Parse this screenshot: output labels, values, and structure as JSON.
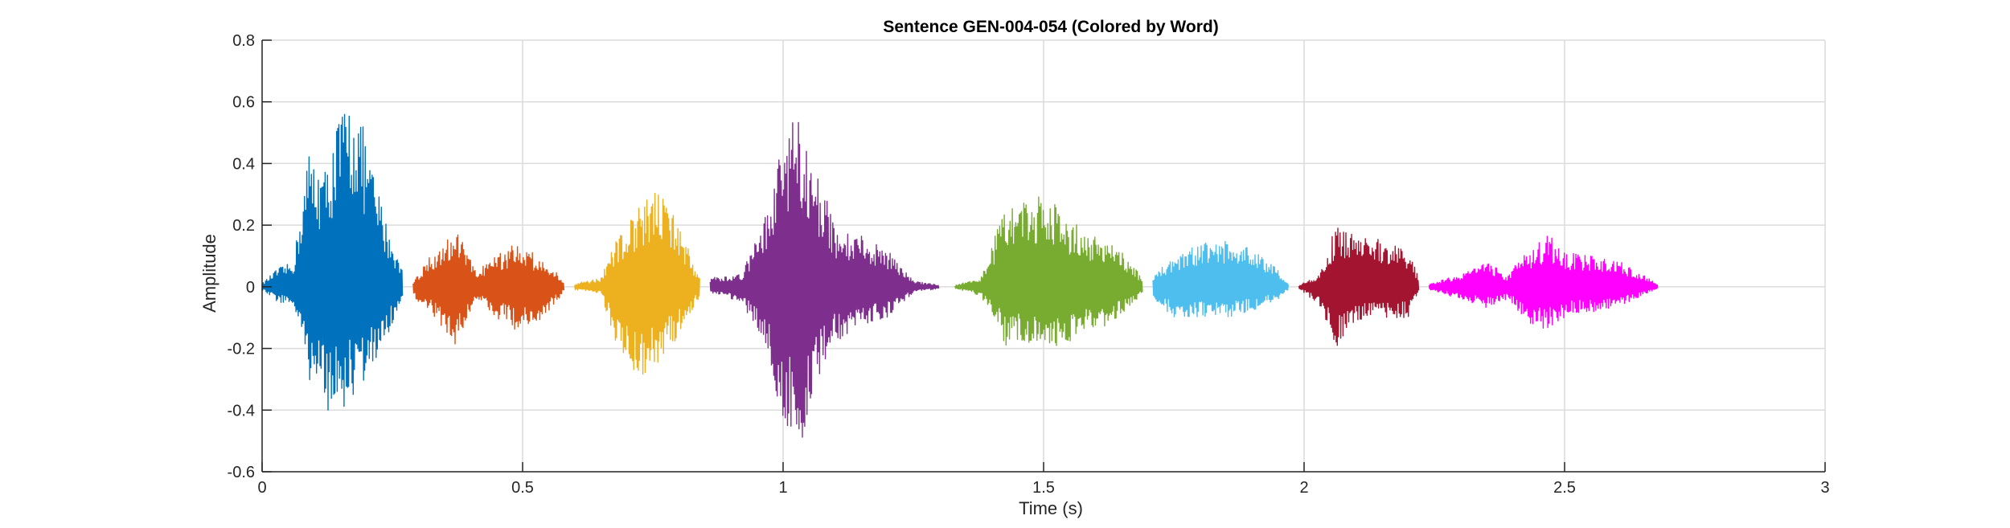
{
  "chart_data": {
    "type": "line",
    "title": "Sentence GEN-004-054 (Colored by Word)",
    "xlabel": "Time (s)",
    "ylabel": "Amplitude",
    "xlim": [
      0,
      3
    ],
    "ylim": [
      -0.6,
      0.8
    ],
    "xticks": [
      0,
      0.5,
      1,
      1.5,
      2,
      2.5,
      3
    ],
    "xtick_labels": [
      "0",
      "0.5",
      "1",
      "1.5",
      "2",
      "2.5",
      "3"
    ],
    "yticks": [
      -0.6,
      -0.4,
      -0.2,
      0,
      0.2,
      0.4,
      0.6,
      0.8
    ],
    "ytick_labels": [
      "-0.6",
      "-0.4",
      "-0.2",
      "0",
      "0.2",
      "0.4",
      "0.6",
      "0.8"
    ],
    "grid": true,
    "series": [
      {
        "color": "#0072BD",
        "start": 0.0,
        "end": 0.27,
        "envelope": [
          [
            0.0,
            0.01,
            -0.01
          ],
          [
            0.03,
            0.06,
            -0.05
          ],
          [
            0.06,
            0.08,
            -0.06
          ],
          [
            0.09,
            0.45,
            -0.3
          ],
          [
            0.12,
            0.38,
            -0.4
          ],
          [
            0.15,
            0.58,
            -0.42
          ],
          [
            0.18,
            0.62,
            -0.35
          ],
          [
            0.21,
            0.4,
            -0.28
          ],
          [
            0.24,
            0.2,
            -0.16
          ],
          [
            0.27,
            0.05,
            -0.05
          ]
        ]
      },
      {
        "color": "#D95319",
        "start": 0.29,
        "end": 0.58,
        "envelope": [
          [
            0.29,
            0.02,
            -0.03
          ],
          [
            0.33,
            0.12,
            -0.1
          ],
          [
            0.37,
            0.2,
            -0.2
          ],
          [
            0.41,
            0.05,
            -0.04
          ],
          [
            0.45,
            0.1,
            -0.1
          ],
          [
            0.49,
            0.15,
            -0.15
          ],
          [
            0.53,
            0.1,
            -0.12
          ],
          [
            0.57,
            0.04,
            -0.04
          ],
          [
            0.58,
            0.01,
            -0.01
          ]
        ]
      },
      {
        "color": "#EDB120",
        "start": 0.6,
        "end": 0.84,
        "envelope": [
          [
            0.6,
            0.01,
            -0.01
          ],
          [
            0.65,
            0.03,
            -0.02
          ],
          [
            0.68,
            0.15,
            -0.2
          ],
          [
            0.72,
            0.25,
            -0.3
          ],
          [
            0.76,
            0.32,
            -0.25
          ],
          [
            0.8,
            0.2,
            -0.16
          ],
          [
            0.84,
            0.03,
            -0.03
          ]
        ]
      },
      {
        "color": "#7E2F8E",
        "start": 0.86,
        "end": 1.3,
        "envelope": [
          [
            0.86,
            0.03,
            -0.02
          ],
          [
            0.92,
            0.04,
            -0.05
          ],
          [
            0.97,
            0.25,
            -0.2
          ],
          [
            1.0,
            0.48,
            -0.45
          ],
          [
            1.03,
            0.58,
            -0.55
          ],
          [
            1.06,
            0.4,
            -0.32
          ],
          [
            1.1,
            0.2,
            -0.18
          ],
          [
            1.15,
            0.17,
            -0.13
          ],
          [
            1.2,
            0.12,
            -0.1
          ],
          [
            1.25,
            0.02,
            -0.02
          ],
          [
            1.3,
            0.005,
            -0.005
          ]
        ]
      },
      {
        "color": "#77AC30",
        "start": 1.33,
        "end": 1.69,
        "envelope": [
          [
            1.33,
            0.005,
            -0.005
          ],
          [
            1.38,
            0.03,
            -0.03
          ],
          [
            1.43,
            0.28,
            -0.2
          ],
          [
            1.48,
            0.3,
            -0.18
          ],
          [
            1.53,
            0.26,
            -0.2
          ],
          [
            1.58,
            0.18,
            -0.15
          ],
          [
            1.63,
            0.15,
            -0.12
          ],
          [
            1.67,
            0.08,
            -0.06
          ],
          [
            1.69,
            0.02,
            -0.02
          ]
        ]
      },
      {
        "color": "#4DBEEE",
        "start": 1.71,
        "end": 1.97,
        "envelope": [
          [
            1.71,
            0.04,
            -0.04
          ],
          [
            1.75,
            0.1,
            -0.1
          ],
          [
            1.8,
            0.14,
            -0.1
          ],
          [
            1.85,
            0.15,
            -0.1
          ],
          [
            1.9,
            0.13,
            -0.08
          ],
          [
            1.95,
            0.06,
            -0.04
          ],
          [
            1.97,
            0.01,
            -0.01
          ]
        ]
      },
      {
        "color": "#A2142F",
        "start": 1.99,
        "end": 2.22,
        "envelope": [
          [
            1.99,
            0.005,
            -0.005
          ],
          [
            2.03,
            0.04,
            -0.06
          ],
          [
            2.06,
            0.2,
            -0.2
          ],
          [
            2.1,
            0.17,
            -0.12
          ],
          [
            2.15,
            0.16,
            -0.1
          ],
          [
            2.2,
            0.12,
            -0.1
          ],
          [
            2.22,
            0.03,
            -0.02
          ]
        ]
      },
      {
        "color": "#FF00FF",
        "start": 2.24,
        "end": 2.68,
        "envelope": [
          [
            2.24,
            0.01,
            -0.01
          ],
          [
            2.3,
            0.04,
            -0.04
          ],
          [
            2.35,
            0.08,
            -0.07
          ],
          [
            2.39,
            0.04,
            -0.04
          ],
          [
            2.43,
            0.12,
            -0.12
          ],
          [
            2.47,
            0.17,
            -0.14
          ],
          [
            2.51,
            0.11,
            -0.09
          ],
          [
            2.56,
            0.1,
            -0.08
          ],
          [
            2.61,
            0.08,
            -0.06
          ],
          [
            2.66,
            0.03,
            -0.02
          ],
          [
            2.68,
            0.005,
            -0.005
          ]
        ]
      }
    ]
  }
}
